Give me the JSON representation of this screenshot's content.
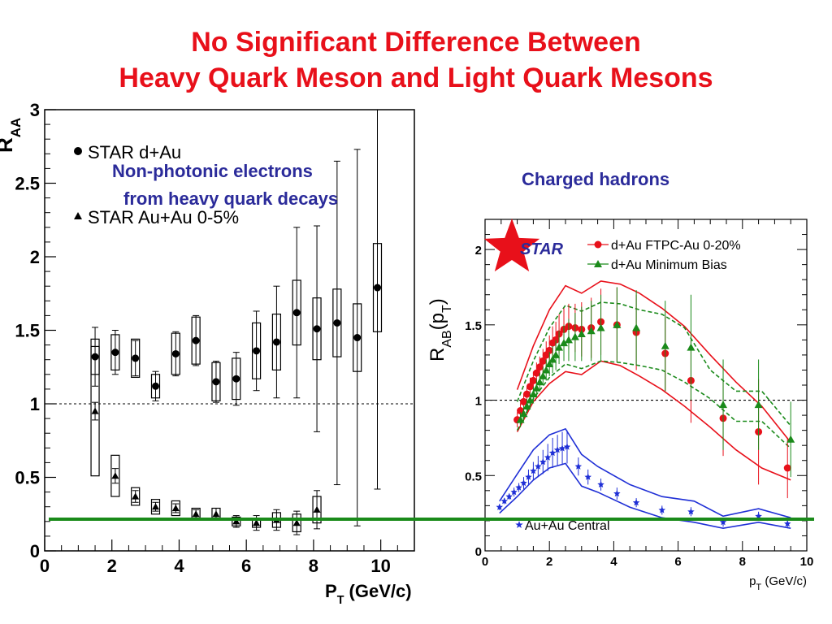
{
  "title": {
    "line1": "No Significant Difference Between",
    "line2": "Heavy Quark Meson and Light Quark Mesons"
  },
  "annotations": {
    "npe_line1": "Non-photonic electrons",
    "npe_line2": "from heavy quark decays",
    "charged": "Charged hadrons"
  },
  "colors": {
    "title": "#e8101a",
    "annotation": "#2b2b9a",
    "separator": "#1a8a1a",
    "dAu_red": "#e8101a",
    "dAu_green": "#1a8a1a",
    "AuAu_blue": "#1f2fd6"
  },
  "chart_data": [
    {
      "type": "scatter",
      "title": "",
      "xlabel": "P_T (GeV/c)",
      "ylabel": "R_AA",
      "xlim": [
        0,
        11
      ],
      "ylim": [
        0,
        3
      ],
      "xticks": [
        "0",
        "2",
        "4",
        "6",
        "8",
        "10"
      ],
      "yticks": [
        "0",
        "0.5",
        "1",
        "1.5",
        "2",
        "2.5",
        "3"
      ],
      "reference_line": 1,
      "legend": {
        "placement": "top-left",
        "entries": [
          "STAR d+Au",
          "STAR Au+Au 0-5%"
        ]
      },
      "series": [
        {
          "name": "STAR d+Au",
          "marker": "circle",
          "x": [
            1.5,
            2.1,
            2.7,
            3.3,
            3.9,
            4.5,
            5.1,
            5.7,
            6.3,
            6.9,
            7.5,
            8.1,
            8.7,
            9.3,
            9.9
          ],
          "y": [
            1.32,
            1.35,
            1.31,
            1.12,
            1.34,
            1.43,
            1.15,
            1.17,
            1.36,
            1.42,
            1.62,
            1.51,
            1.55,
            1.45,
            1.79
          ],
          "err": [
            0.2,
            0.15,
            0.12,
            0.1,
            0.15,
            0.17,
            0.14,
            0.18,
            0.27,
            0.38,
            0.58,
            0.7,
            1.1,
            1.28,
            1.37
          ],
          "box_err": [
            0.12,
            0.12,
            0.13,
            0.08,
            0.14,
            0.16,
            0.13,
            0.14,
            0.19,
            0.19,
            0.22,
            0.21,
            0.23,
            0.23,
            0.3
          ]
        },
        {
          "name": "STAR Au+Au 0-5%",
          "marker": "triangle",
          "x": [
            1.5,
            2.1,
            2.7,
            3.3,
            3.9,
            4.5,
            5.1,
            5.7,
            6.3,
            6.9,
            7.5,
            8.1
          ],
          "y": [
            0.95,
            0.51,
            0.37,
            0.3,
            0.29,
            0.25,
            0.25,
            0.2,
            0.19,
            0.21,
            0.19,
            0.28
          ],
          "err": [
            0.06,
            0.05,
            0.04,
            0.03,
            0.03,
            0.03,
            0.04,
            0.04,
            0.05,
            0.07,
            0.08,
            0.13
          ],
          "box_err": [
            0.44,
            0.14,
            0.06,
            0.05,
            0.05,
            0.04,
            0.04,
            0.03,
            0.03,
            0.05,
            0.06,
            0.09
          ]
        }
      ]
    },
    {
      "type": "scatter",
      "title": "",
      "xlabel": "p_T (GeV/c)",
      "ylabel": "R_AB(p_T)",
      "xlim": [
        0,
        10
      ],
      "ylim": [
        0,
        2.2
      ],
      "xticks": [
        "0",
        "2",
        "4",
        "6",
        "8",
        "10"
      ],
      "yticks": [
        "0",
        "0.5",
        "1",
        "1.5",
        "2"
      ],
      "reference_line": 1,
      "logo": "STAR",
      "legend": {
        "placement": "top-right",
        "entries": [
          "d+Au FTPC-Au 0-20%",
          "d+Au Minimum Bias",
          "Au+Au Central"
        ]
      },
      "series": [
        {
          "name": "d+Au FTPC-Au 0-20%",
          "marker": "circle",
          "x": [
            1.0,
            1.1,
            1.2,
            1.3,
            1.4,
            1.5,
            1.6,
            1.7,
            1.8,
            1.9,
            2.0,
            2.1,
            2.2,
            2.3,
            2.45,
            2.6,
            2.8,
            3.0,
            3.3,
            3.6,
            4.1,
            4.7,
            5.6,
            6.4,
            7.4,
            8.5,
            9.4
          ],
          "y": [
            0.87,
            0.93,
            0.99,
            1.04,
            1.09,
            1.13,
            1.18,
            1.22,
            1.26,
            1.3,
            1.33,
            1.38,
            1.4,
            1.44,
            1.47,
            1.49,
            1.48,
            1.47,
            1.48,
            1.52,
            1.5,
            1.45,
            1.31,
            1.13,
            0.88,
            0.79,
            0.55
          ],
          "err": [
            0.05,
            0.05,
            0.05,
            0.05,
            0.06,
            0.06,
            0.07,
            0.07,
            0.08,
            0.09,
            0.1,
            0.11,
            0.12,
            0.13,
            0.14,
            0.15,
            0.16,
            0.18,
            0.2,
            0.22,
            0.25,
            0.25,
            0.25,
            0.28,
            0.25,
            0.35,
            0.2
          ]
        },
        {
          "name": "d+Au Minimum Bias",
          "marker": "triangle",
          "x": [
            1.1,
            1.2,
            1.3,
            1.4,
            1.5,
            1.6,
            1.7,
            1.8,
            1.9,
            2.0,
            2.1,
            2.2,
            2.3,
            2.45,
            2.6,
            2.8,
            3.0,
            3.3,
            3.6,
            4.1,
            4.7,
            5.6,
            6.4,
            7.4,
            8.5,
            9.5
          ],
          "y": [
            0.87,
            0.91,
            0.96,
            1.0,
            1.04,
            1.08,
            1.12,
            1.16,
            1.2,
            1.24,
            1.27,
            1.3,
            1.35,
            1.38,
            1.4,
            1.42,
            1.44,
            1.46,
            1.48,
            1.5,
            1.48,
            1.36,
            1.35,
            0.97,
            0.97,
            0.74
          ],
          "err": [
            0.05,
            0.05,
            0.05,
            0.05,
            0.05,
            0.06,
            0.06,
            0.06,
            0.07,
            0.08,
            0.09,
            0.1,
            0.11,
            0.12,
            0.14,
            0.16,
            0.18,
            0.2,
            0.22,
            0.25,
            0.25,
            0.3,
            0.35,
            0.3,
            0.3,
            0.25
          ]
        },
        {
          "name": "Au+Au Central",
          "marker": "star",
          "x": [
            0.45,
            0.6,
            0.75,
            0.9,
            1.05,
            1.2,
            1.35,
            1.5,
            1.65,
            1.8,
            1.95,
            2.1,
            2.25,
            2.4,
            2.55,
            2.9,
            3.2,
            3.6,
            4.1,
            4.7,
            5.5,
            6.4,
            7.4,
            8.5,
            9.4
          ],
          "y": [
            0.29,
            0.33,
            0.36,
            0.39,
            0.42,
            0.45,
            0.49,
            0.53,
            0.56,
            0.59,
            0.62,
            0.65,
            0.67,
            0.68,
            0.69,
            0.56,
            0.49,
            0.44,
            0.38,
            0.32,
            0.27,
            0.26,
            0.19,
            0.23,
            0.18
          ],
          "err": [
            0.02,
            0.02,
            0.02,
            0.03,
            0.03,
            0.04,
            0.05,
            0.06,
            0.07,
            0.08,
            0.09,
            0.1,
            0.1,
            0.11,
            0.11,
            0.06,
            0.05,
            0.04,
            0.04,
            0.03,
            0.03,
            0.03,
            0.03,
            0.03,
            0.03
          ]
        }
      ],
      "bands": [
        {
          "series": "d+Au FTPC-Au 0-20%",
          "style": "solid",
          "x": [
            1.0,
            1.5,
            2.0,
            2.5,
            3.0,
            3.6,
            4.2,
            4.8,
            5.5,
            6.2,
            7.0,
            7.8,
            8.6,
            9.5
          ],
          "upper": [
            1.07,
            1.36,
            1.6,
            1.76,
            1.71,
            1.79,
            1.77,
            1.71,
            1.61,
            1.49,
            1.3,
            1.12,
            0.96,
            0.72
          ],
          "lower": [
            0.79,
            0.99,
            1.11,
            1.19,
            1.17,
            1.26,
            1.23,
            1.16,
            1.07,
            0.96,
            0.82,
            0.67,
            0.55,
            0.47
          ]
        },
        {
          "series": "d+Au Minimum Bias",
          "style": "dashed",
          "x": [
            1.0,
            1.5,
            2.0,
            2.5,
            3.0,
            3.6,
            4.2,
            4.8,
            5.5,
            6.2,
            7.0,
            7.8,
            8.6,
            9.5
          ],
          "upper": [
            0.99,
            1.26,
            1.48,
            1.63,
            1.59,
            1.65,
            1.64,
            1.6,
            1.57,
            1.48,
            1.2,
            1.06,
            1.06,
            0.83
          ],
          "lower": [
            0.8,
            1.01,
            1.15,
            1.24,
            1.21,
            1.26,
            1.25,
            1.23,
            1.2,
            1.12,
            1.01,
            0.86,
            0.86,
            0.68
          ]
        },
        {
          "series": "Au+Au Central",
          "style": "solid",
          "x": [
            0.45,
            1.0,
            1.5,
            2.0,
            2.5,
            3.0,
            3.5,
            4.5,
            5.5,
            6.5,
            7.4,
            8.5,
            9.5
          ],
          "upper": [
            0.33,
            0.51,
            0.67,
            0.77,
            0.81,
            0.64,
            0.56,
            0.44,
            0.36,
            0.33,
            0.23,
            0.28,
            0.22
          ],
          "lower": [
            0.25,
            0.36,
            0.47,
            0.55,
            0.58,
            0.43,
            0.39,
            0.29,
            0.22,
            0.19,
            0.15,
            0.19,
            0.15
          ]
        }
      ]
    }
  ]
}
